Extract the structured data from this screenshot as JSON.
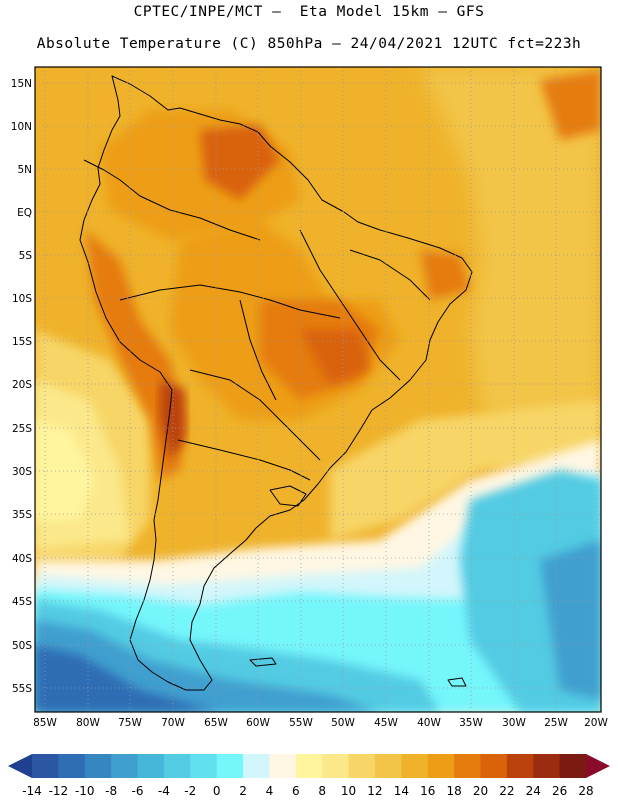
{
  "header": {
    "line1": "CPTEC/INPE/MCT –  Eta Model 15km – GFS",
    "line2": "Absolute Temperature (C) 850hPa – 24/04/2021 12UTC fct=223h"
  },
  "axes": {
    "lon_labels": [
      "85W",
      "80W",
      "75W",
      "70W",
      "65W",
      "60W",
      "55W",
      "50W",
      "45W",
      "40W",
      "35W",
      "30W",
      "25W",
      "20W"
    ],
    "lat_labels": [
      "15N",
      "10N",
      "5N",
      "EQ",
      "5S",
      "10S",
      "15S",
      "20S",
      "25S",
      "30S",
      "35S",
      "40S",
      "45S",
      "50S",
      "55S"
    ]
  },
  "colorbar": {
    "labels": [
      "-14",
      "-12",
      "-10",
      "-8",
      "-6",
      "-4",
      "-2",
      "0",
      "2",
      "4",
      "6",
      "8",
      "10",
      "12",
      "14",
      "16",
      "18",
      "20",
      "22",
      "24",
      "26",
      "28"
    ],
    "colors": [
      "#1f3f8f",
      "#2a56a3",
      "#2f6db4",
      "#3686c2",
      "#3f9fcf",
      "#47b7d9",
      "#52cbe3",
      "#62e0ef",
      "#74f6fb",
      "#d2f6fb",
      "#fff7e3",
      "#fff59f",
      "#fbe88a",
      "#f7d566",
      "#f2c447",
      "#efb22a",
      "#ed9e16",
      "#e57c0e",
      "#d9620a",
      "#bb420c",
      "#9c2c10",
      "#7a1a12",
      "#8a0a2a"
    ]
  },
  "map": {
    "region": "South America",
    "variable": "Absolute Temperature (C) 850hPa"
  }
}
